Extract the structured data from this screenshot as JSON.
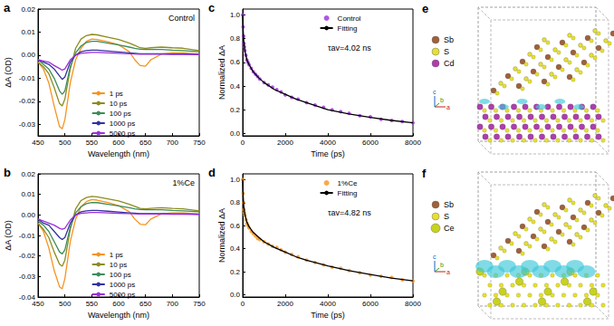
{
  "chart_data": [
    {
      "type": "line",
      "panel_label": "a",
      "title": "Control",
      "x_label": "Wavelength (nm)",
      "y_label": "ΔA (OD)",
      "x": [
        450,
        460,
        470,
        480,
        490,
        495,
        500,
        510,
        520,
        530,
        540,
        550,
        560,
        580,
        600,
        620,
        630,
        640,
        650,
        660,
        680,
        700,
        720,
        750
      ],
      "xlim": [
        450,
        750
      ],
      "xticks": [
        450,
        500,
        550,
        600,
        650,
        700,
        750
      ],
      "ylim": [
        -0.035,
        0.02
      ],
      "yticks": [
        -0.03,
        -0.02,
        -0.01,
        {
          "value": 0,
          "label": "0.00"
        },
        0.01,
        0.02
      ],
      "legend": "lower center",
      "grid": false,
      "series": [
        {
          "name": "1 ps",
          "color": "#f7931e",
          "line_style": "solid",
          "values": [
            -0.003,
            -0.006,
            -0.012,
            -0.022,
            -0.031,
            -0.032,
            -0.028,
            -0.012,
            -0.002,
            0.003,
            0.006,
            0.007,
            0.0068,
            0.0058,
            0.0045,
            0.0015,
            -0.002,
            -0.0045,
            -0.0048,
            -0.002,
            0.0005,
            0.001,
            0.001,
            0.0005
          ]
        },
        {
          "name": "10 ps",
          "color": "#8c8c1e",
          "line_style": "solid",
          "values": [
            -0.003,
            -0.005,
            -0.008,
            -0.014,
            -0.021,
            -0.022,
            -0.019,
            -0.006,
            0.003,
            0.007,
            0.0085,
            0.009,
            0.0088,
            0.0078,
            0.0068,
            0.0052,
            0.0042,
            0.0032,
            0.003,
            0.0032,
            0.0035,
            0.0032,
            0.003,
            0.002
          ]
        },
        {
          "name": "100 ps",
          "color": "#3c8c5a",
          "line_style": "solid",
          "values": [
            -0.002,
            -0.004,
            -0.006,
            -0.01,
            -0.0155,
            -0.017,
            -0.0155,
            -0.005,
            0.001,
            0.004,
            0.0055,
            0.006,
            0.006,
            0.0052,
            0.0044,
            0.0035,
            0.003,
            0.0026,
            0.0025,
            0.0025,
            0.0025,
            0.0022,
            0.002,
            0.0015
          ]
        },
        {
          "name": "1000 ps",
          "color": "#3232a0",
          "line_style": "solid",
          "values": [
            -0.002,
            -0.003,
            -0.004,
            -0.006,
            -0.009,
            -0.0105,
            -0.0095,
            -0.003,
            0.0,
            0.0015,
            0.002,
            0.0022,
            0.0022,
            0.0018,
            0.0014,
            0.001,
            0.0008,
            0.0006,
            0.0006,
            0.0006,
            0.0006,
            0.0005,
            0.0005,
            0.0003
          ]
        },
        {
          "name": "5000 ps",
          "color": "#9b30d9",
          "line_style": "solid",
          "values": [
            -0.002,
            -0.0025,
            -0.003,
            -0.0045,
            -0.0058,
            -0.0065,
            -0.006,
            -0.002,
            0.0,
            0.0008,
            0.001,
            0.0012,
            0.0012,
            0.001,
            0.0008,
            0.0006,
            0.0005,
            0.0004,
            0.0004,
            0.0004,
            0.0004,
            0.0003,
            0.0003,
            0.0002
          ]
        }
      ]
    },
    {
      "type": "line",
      "panel_label": "b",
      "title": "1%Ce",
      "x_label": "Wavelength (nm)",
      "y_label": "ΔA (OD)",
      "x": [
        450,
        460,
        470,
        480,
        490,
        495,
        500,
        510,
        520,
        530,
        540,
        550,
        560,
        580,
        600,
        620,
        630,
        640,
        650,
        660,
        680,
        700,
        720,
        750
      ],
      "xlim": [
        450,
        750
      ],
      "xticks": [
        450,
        500,
        550,
        600,
        650,
        700,
        750
      ],
      "ylim": [
        -0.04,
        0.02
      ],
      "yticks": [
        -0.04,
        -0.03,
        -0.02,
        -0.01,
        {
          "value": 0,
          "label": "0.00"
        },
        0.01,
        0.02
      ],
      "legend": "lower center",
      "grid": false,
      "series": [
        {
          "name": "1 ps",
          "color": "#f7931e",
          "line_style": "solid",
          "values": [
            -0.004,
            -0.008,
            -0.016,
            -0.027,
            -0.035,
            -0.036,
            -0.031,
            -0.013,
            -0.002,
            0.004,
            0.0065,
            0.0075,
            0.0072,
            0.006,
            0.0045,
            0.0015,
            -0.002,
            -0.0045,
            -0.0048,
            -0.002,
            0.0005,
            0.001,
            0.001,
            0.0005
          ]
        },
        {
          "name": "10 ps",
          "color": "#8c8c1e",
          "line_style": "solid",
          "values": [
            -0.004,
            -0.007,
            -0.011,
            -0.018,
            -0.024,
            -0.025,
            -0.022,
            -0.007,
            0.003,
            0.007,
            0.0085,
            0.009,
            0.0088,
            0.0078,
            0.0068,
            0.0052,
            0.0042,
            0.0032,
            0.003,
            0.0032,
            0.0035,
            0.0032,
            0.003,
            0.002
          ]
        },
        {
          "name": "100 ps",
          "color": "#3c8c5a",
          "line_style": "solid",
          "values": [
            -0.003,
            -0.005,
            -0.008,
            -0.013,
            -0.018,
            -0.019,
            -0.017,
            -0.006,
            0.001,
            0.004,
            0.0055,
            0.006,
            0.006,
            0.0052,
            0.0044,
            0.0035,
            0.003,
            0.0026,
            0.0025,
            0.0025,
            0.0025,
            0.0022,
            0.002,
            0.0015
          ]
        },
        {
          "name": "1000 ps",
          "color": "#3232a0",
          "line_style": "solid",
          "values": [
            -0.002,
            -0.004,
            -0.005,
            -0.008,
            -0.011,
            -0.012,
            -0.011,
            -0.004,
            0.0,
            0.0015,
            0.002,
            0.0022,
            0.0022,
            0.0018,
            0.0014,
            0.001,
            0.0008,
            0.0006,
            0.0006,
            0.0006,
            0.0006,
            0.0005,
            0.0005,
            0.0003
          ]
        },
        {
          "name": "5000 ps",
          "color": "#9b30d9",
          "line_style": "solid",
          "values": [
            -0.002,
            -0.003,
            -0.004,
            -0.005,
            -0.0065,
            -0.007,
            -0.0065,
            -0.0025,
            0.0,
            0.0008,
            0.001,
            0.0012,
            0.0012,
            0.001,
            0.0008,
            0.0006,
            0.0005,
            0.0004,
            0.0004,
            0.0004,
            0.0004,
            0.0003,
            0.0003,
            0.0002
          ]
        }
      ]
    },
    {
      "type": "scatter",
      "panel_label": "c",
      "annotations": [
        "τav=4.02 ns"
      ],
      "x_label": "Time (ps)",
      "y_label": "Normalized ΔA",
      "xlim": [
        0,
        8000
      ],
      "xticks": [
        0,
        2000,
        4000,
        6000,
        8000
      ],
      "ylim": [
        -0.02,
        1.05
      ],
      "yticks": [
        {
          "value": 0,
          "label": "0.0"
        },
        0.2,
        0.4,
        0.6,
        0.8,
        {
          "value": 1,
          "label": "1.0"
        }
      ],
      "legend": "upper right",
      "grid": false,
      "series": [
        {
          "name": "Control",
          "type": "scatter",
          "marker": "circle",
          "color": "#9b30d9",
          "x": [
            0,
            20,
            40,
            60,
            80,
            100,
            150,
            200,
            250,
            300,
            400,
            500,
            600,
            700,
            800,
            1000,
            1200,
            1400,
            1600,
            1800,
            2000,
            2300,
            2600,
            3000,
            3400,
            3800,
            4200,
            4600,
            5000,
            5500,
            6000,
            6500,
            7000,
            7500,
            8000
          ],
          "values": [
            1.0,
            0.9,
            0.82,
            0.76,
            0.73,
            0.7,
            0.66,
            0.62,
            0.6,
            0.58,
            0.55,
            0.52,
            0.5,
            0.48,
            0.46,
            0.43,
            0.41,
            0.39,
            0.37,
            0.35,
            0.325,
            0.305,
            0.29,
            0.26,
            0.24,
            0.22,
            0.2,
            0.185,
            0.17,
            0.15,
            0.14,
            0.12,
            0.11,
            0.1,
            0.09
          ]
        },
        {
          "name": "Fitting",
          "type": "line",
          "line_style": "solid",
          "color": "#000000",
          "x": [
            0,
            25,
            50,
            100,
            200,
            300,
            500,
            750,
            1000,
            1500,
            2000,
            2500,
            3000,
            4000,
            5000,
            6000,
            7000,
            8000
          ],
          "values": [
            1.0,
            0.86,
            0.78,
            0.7,
            0.62,
            0.58,
            0.52,
            0.47,
            0.43,
            0.37,
            0.33,
            0.29,
            0.26,
            0.2,
            0.165,
            0.135,
            0.11,
            0.09
          ]
        }
      ]
    },
    {
      "type": "scatter",
      "panel_label": "d",
      "annotations": [
        "τav=4.82 ns"
      ],
      "x_label": "Time (ps)",
      "y_label": "Normalized ΔA",
      "xlim": [
        0,
        8000
      ],
      "xticks": [
        0,
        2000,
        4000,
        6000,
        8000
      ],
      "ylim": [
        -0.02,
        1.05
      ],
      "yticks": [
        {
          "value": 0,
          "label": "0.0"
        },
        0.2,
        0.4,
        0.6,
        0.8,
        {
          "value": 1,
          "label": "1.0"
        }
      ],
      "legend": "upper right",
      "grid": false,
      "series": [
        {
          "name": "1%Ce",
          "type": "scatter",
          "marker": "circle",
          "color": "#f7931e",
          "x": [
            0,
            20,
            40,
            60,
            80,
            100,
            150,
            200,
            250,
            300,
            400,
            500,
            600,
            700,
            800,
            1000,
            1200,
            1400,
            1600,
            1800,
            2000,
            2300,
            2600,
            3000,
            3400,
            3800,
            4200,
            4600,
            5000,
            5500,
            6000,
            6500,
            7000,
            7500,
            8000
          ],
          "values": [
            1.0,
            0.88,
            0.8,
            0.74,
            0.71,
            0.69,
            0.65,
            0.62,
            0.6,
            0.58,
            0.55,
            0.53,
            0.51,
            0.49,
            0.48,
            0.46,
            0.44,
            0.42,
            0.41,
            0.39,
            0.37,
            0.35,
            0.33,
            0.3,
            0.28,
            0.26,
            0.24,
            0.23,
            0.21,
            0.19,
            0.17,
            0.16,
            0.15,
            0.13,
            0.12
          ]
        },
        {
          "name": "Fitting",
          "type": "line",
          "line_style": "solid",
          "color": "#000000",
          "x": [
            0,
            25,
            50,
            100,
            200,
            300,
            500,
            750,
            1000,
            1500,
            2000,
            2500,
            3000,
            4000,
            5000,
            6000,
            7000,
            8000
          ],
          "values": [
            1.0,
            0.85,
            0.77,
            0.7,
            0.63,
            0.59,
            0.54,
            0.5,
            0.46,
            0.41,
            0.37,
            0.33,
            0.3,
            0.25,
            0.21,
            0.175,
            0.145,
            0.12
          ]
        }
      ]
    }
  ],
  "structures": [
    {
      "panel_label": "e",
      "legend": [
        {
          "label": "Sb",
          "color": "#a0603a"
        },
        {
          "label": "S",
          "color": "#e6e033"
        },
        {
          "label": "Cd",
          "color": "#b03cb0"
        }
      ],
      "axes": [
        "c",
        "a",
        "b"
      ]
    },
    {
      "panel_label": "f",
      "legend": [
        {
          "label": "Sb",
          "color": "#a0603a"
        },
        {
          "label": "S",
          "color": "#e6e033"
        },
        {
          "label": "Ce",
          "color": "#c8d21e"
        }
      ],
      "axes": [
        "c",
        "a",
        "b"
      ]
    }
  ]
}
